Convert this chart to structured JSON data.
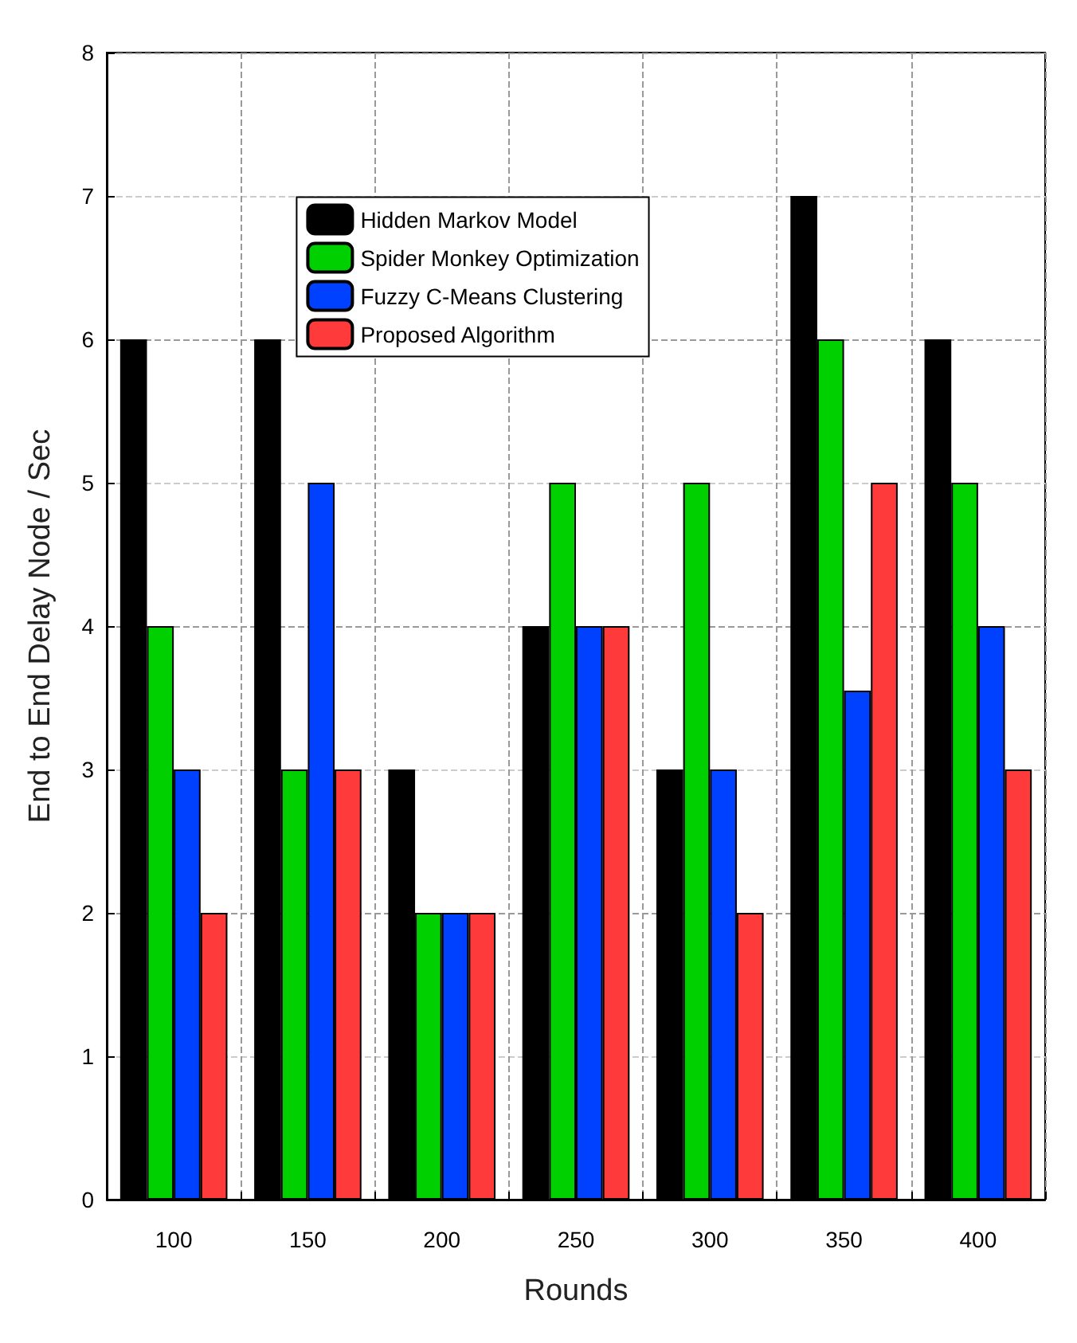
{
  "chart_data": {
    "type": "bar",
    "xlabel": "Rounds",
    "ylabel": "End to End Delay Node / Sec",
    "categories": [
      "100",
      "150",
      "200",
      "250",
      "300",
      "350",
      "400"
    ],
    "series": [
      {
        "name": "Hidden Markov Model",
        "color": "#000000",
        "values": [
          6,
          6,
          3,
          4,
          3,
          7,
          6
        ]
      },
      {
        "name": "Spider Monkey Optimization",
        "color": "#00d000",
        "values": [
          4,
          3,
          2,
          5,
          5,
          6,
          5
        ]
      },
      {
        "name": "Fuzzy C-Means Clustering",
        "color": "#0040ff",
        "values": [
          3,
          5,
          2,
          4,
          3,
          3.55,
          4
        ]
      },
      {
        "name": "Proposed Algorithm",
        "color": "#ff3a3a",
        "values": [
          2,
          3,
          2,
          4,
          2,
          5,
          3
        ]
      }
    ],
    "ylim": [
      0,
      8
    ],
    "yticks": [
      0,
      1,
      2,
      3,
      4,
      5,
      6,
      7,
      8
    ],
    "grid": true,
    "legend": "top left"
  }
}
